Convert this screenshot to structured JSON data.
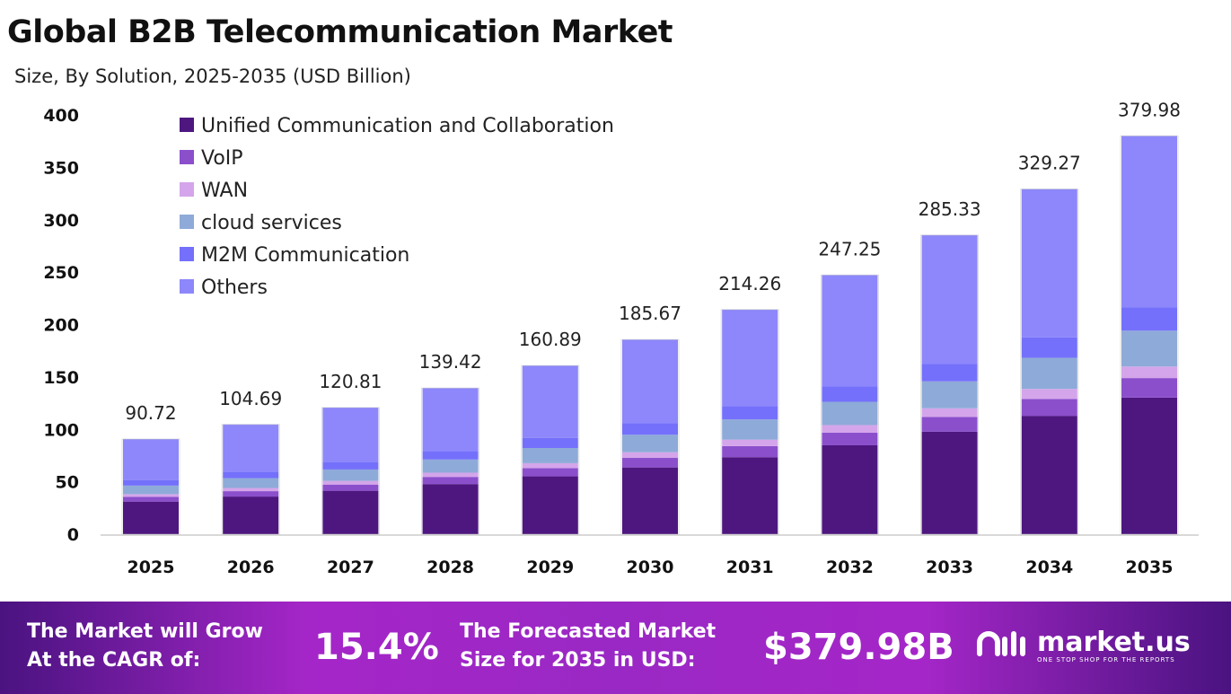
{
  "chart_data": {
    "type": "bar",
    "stacked": true,
    "title": "Global B2B Telecommunication Market",
    "subtitle": "Size, By Solution, 2025-2035 (USD Billion)",
    "xlabel": "",
    "ylabel": "",
    "ylim": [
      0,
      400
    ],
    "yticks": [
      0,
      50,
      100,
      150,
      200,
      250,
      300,
      350,
      400
    ],
    "grid": false,
    "legend_position": "top-left",
    "categories": [
      "2025",
      "2026",
      "2027",
      "2028",
      "2029",
      "2030",
      "2031",
      "2032",
      "2033",
      "2034",
      "2035"
    ],
    "totals": [
      90.72,
      104.69,
      120.81,
      139.42,
      160.89,
      185.67,
      214.26,
      247.25,
      285.33,
      329.27,
      379.98
    ],
    "series": [
      {
        "name": "Unified Communication and Collaboration",
        "color": "#4e1780",
        "values": [
          31.12,
          35.91,
          41.44,
          47.82,
          55.19,
          63.69,
          73.49,
          84.81,
          97.87,
          112.94,
          130.33
        ]
      },
      {
        "name": "VoIP",
        "color": "#8b4fcc",
        "values": [
          4.45,
          5.13,
          5.92,
          6.83,
          7.88,
          9.1,
          10.5,
          12.12,
          13.98,
          16.13,
          18.62
        ]
      },
      {
        "name": "WAN",
        "color": "#d4a5ea",
        "values": [
          2.63,
          3.04,
          3.5,
          4.04,
          4.67,
          5.38,
          6.21,
          7.17,
          8.27,
          9.55,
          11.02
        ]
      },
      {
        "name": "cloud services",
        "color": "#8eaad8",
        "values": [
          8.16,
          9.42,
          10.87,
          12.55,
          14.48,
          16.71,
          19.28,
          22.25,
          25.68,
          29.63,
          34.2
        ]
      },
      {
        "name": "M2M Communication",
        "color": "#7470fb",
        "values": [
          5.35,
          6.18,
          7.13,
          8.23,
          9.49,
          10.95,
          12.64,
          14.59,
          16.83,
          19.43,
          22.42
        ]
      },
      {
        "name": "Others",
        "color": "#8d87fb",
        "values": [
          39.01,
          45.01,
          51.95,
          59.95,
          69.18,
          79.84,
          92.14,
          106.31,
          122.7,
          141.59,
          163.39
        ]
      }
    ]
  },
  "footer": {
    "cagr_label_1": "The Market will Grow",
    "cagr_label_2": "At the CAGR of:",
    "cagr_value": "15.4%",
    "size_label_1": "The Forecasted Market",
    "size_label_2": "Size for 2035 in USD:",
    "size_value": "$379.98B",
    "logo_name": "market.us",
    "logo_tagline": "ONE STOP SHOP FOR THE REPORTS"
  }
}
